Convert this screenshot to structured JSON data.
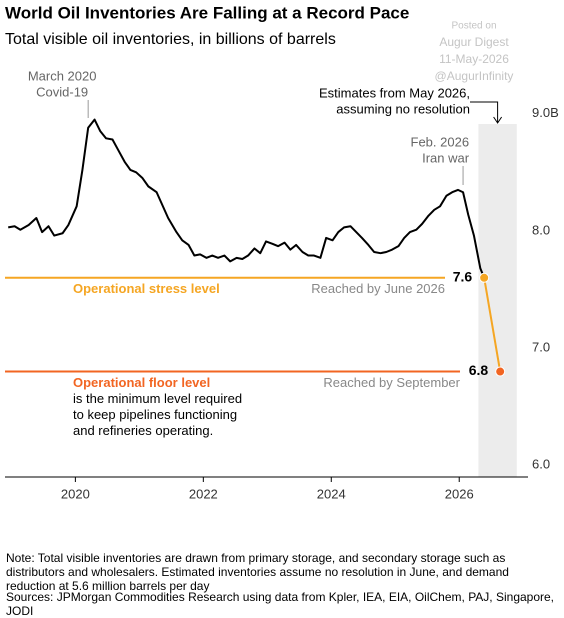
{
  "chart_data": {
    "type": "line",
    "title": "World Oil Inventories Are Falling at a Record Pace",
    "subtitle": "Total visible oil inventories, in billions of barrels",
    "watermark": [
      "Posted on",
      "Augur Digest",
      "11-May-2026",
      "@AugurInfinity"
    ],
    "xlim": [
      2018.9,
      2026.95
    ],
    "xticks": [
      2020,
      2022,
      2024,
      2026
    ],
    "ylim": [
      5.9,
      9.1
    ],
    "yticks": [
      {
        "value": 9,
        "label": "9.0B"
      },
      {
        "value": 8,
        "label": "8.0"
      },
      {
        "value": 7,
        "label": "7.0"
      },
      {
        "value": 6,
        "label": "6.0"
      }
    ],
    "grid": false,
    "series": [
      {
        "color": "#000000",
        "x": [
          2018.95,
          2019.05,
          2019.14,
          2019.27,
          2019.39,
          2019.48,
          2019.58,
          2019.67,
          2019.8,
          2019.89,
          2020.02,
          2020.11,
          2020.2,
          2020.3,
          2020.39,
          2020.48,
          2020.58,
          2020.67,
          2020.77,
          2020.86,
          2020.95,
          2021.05,
          2021.14,
          2021.27,
          2021.36,
          2021.45,
          2021.58,
          2021.67,
          2021.77,
          2021.86,
          2021.95,
          2022.05,
          2022.14,
          2022.23,
          2022.33,
          2022.42,
          2022.52,
          2022.61,
          2022.7,
          2022.8,
          2022.89,
          2022.98,
          2023.08,
          2023.17,
          2023.27,
          2023.36,
          2023.45,
          2023.55,
          2023.64,
          2023.73,
          2023.83,
          2023.92,
          2024.02,
          2024.11,
          2024.2,
          2024.3,
          2024.39,
          2024.48,
          2024.58,
          2024.67,
          2024.77,
          2024.86,
          2024.95,
          2025.05,
          2025.14,
          2025.23,
          2025.33,
          2025.42,
          2025.52,
          2025.61,
          2025.7,
          2025.8,
          2025.89,
          2025.98,
          2026.06,
          2026.14,
          2026.23,
          2026.33,
          2026.39
        ],
        "values": [
          8.03,
          8.04,
          8.01,
          8.05,
          8.11,
          7.99,
          8.04,
          7.96,
          7.98,
          8.05,
          8.21,
          8.52,
          8.88,
          8.95,
          8.85,
          8.79,
          8.78,
          8.69,
          8.59,
          8.52,
          8.5,
          8.45,
          8.38,
          8.33,
          8.22,
          8.11,
          7.99,
          7.92,
          7.88,
          7.79,
          7.8,
          7.77,
          7.79,
          7.77,
          7.79,
          7.74,
          7.77,
          7.76,
          7.79,
          7.85,
          7.81,
          7.91,
          7.89,
          7.87,
          7.9,
          7.84,
          7.88,
          7.82,
          7.79,
          7.79,
          7.77,
          7.94,
          7.92,
          7.99,
          8.03,
          8.04,
          7.99,
          7.94,
          7.88,
          7.82,
          7.81,
          7.82,
          7.84,
          7.87,
          7.94,
          7.99,
          8.01,
          8.06,
          8.13,
          8.18,
          8.21,
          8.3,
          8.33,
          8.35,
          8.33,
          8.14,
          7.96,
          7.68,
          7.6
        ]
      },
      {
        "color": "#f5a623",
        "point_colors": [
          "#f5a623",
          "#f26522"
        ],
        "x": [
          2026.39,
          2026.64
        ],
        "values": [
          7.6,
          6.8
        ]
      }
    ],
    "shaded_region": {
      "xlim": [
        2026.3,
        2026.9
      ],
      "color": "#ececec",
      "label": [
        "Estimates from May 2026,",
        "assuming no resolution"
      ]
    },
    "annotations": [
      {
        "x": 2020.2,
        "text": [
          "March 2020",
          "Covid-19"
        ]
      },
      {
        "x": 2026.06,
        "text": [
          "Feb. 2026",
          "Iran war"
        ]
      }
    ],
    "reference_lines": [
      {
        "value": 7.6,
        "color": "#f5a623",
        "label": "Operational stress level",
        "note": "Reached by June 2026"
      },
      {
        "value": 6.8,
        "color": "#f26522",
        "label": "Operational floor level",
        "note": "Reached by September",
        "description": [
          "is the minimum level required",
          "to keep pipelines functioning",
          "and refineries operating."
        ]
      }
    ],
    "note": "Note: Total visible inventories are drawn from primary storage, and secondary storage such as distributors and wholesalers. Estimated inventories assume no resolution in June, and demand reduction at 5.6 million barrels per day",
    "source": "Sources: JPMorgan Commodities Research using data from Kpler, IEA, EIA, OilChem, PAJ, Singapore, JODI"
  }
}
